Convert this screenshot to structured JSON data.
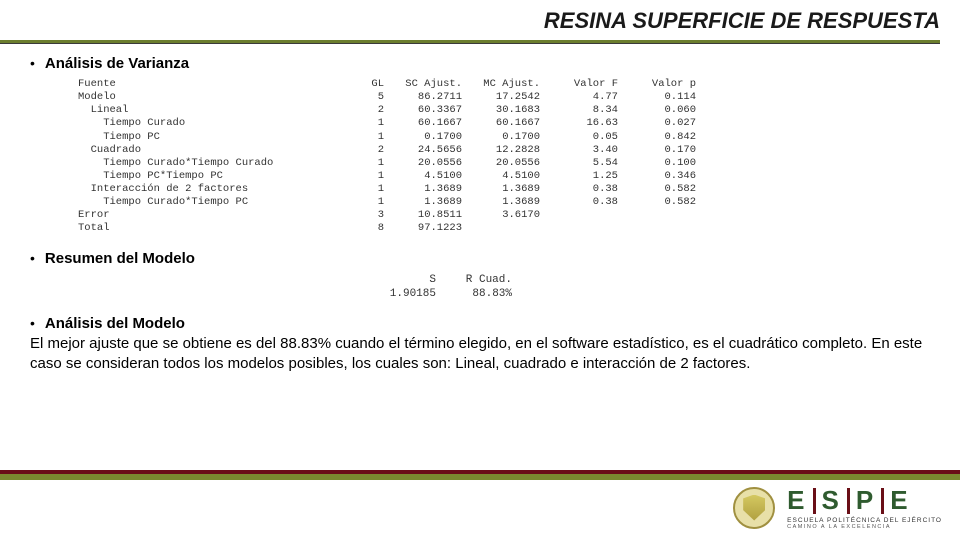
{
  "title": "RESINA SUPERFICIE DE RESPUESTA",
  "sections": {
    "anova_label": "Análisis de Varianza",
    "summary_label": "Resumen del Modelo",
    "analysis_label": "Análisis del Modelo"
  },
  "anova": {
    "headers": [
      "Fuente",
      "GL",
      "SC Ajust.",
      "MC Ajust.",
      "Valor F",
      "Valor p"
    ],
    "rows": [
      {
        "src": "Modelo",
        "indent": 0,
        "gl": "5",
        "sc": "86.2711",
        "mc": "17.2542",
        "f": "4.77",
        "p": "0.114"
      },
      {
        "src": "Lineal",
        "indent": 1,
        "gl": "2",
        "sc": "60.3367",
        "mc": "30.1683",
        "f": "8.34",
        "p": "0.060"
      },
      {
        "src": "Tiempo Curado",
        "indent": 2,
        "gl": "1",
        "sc": "60.1667",
        "mc": "60.1667",
        "f": "16.63",
        "p": "0.027"
      },
      {
        "src": "Tiempo PC",
        "indent": 2,
        "gl": "1",
        "sc": "0.1700",
        "mc": "0.1700",
        "f": "0.05",
        "p": "0.842"
      },
      {
        "src": "Cuadrado",
        "indent": 1,
        "gl": "2",
        "sc": "24.5656",
        "mc": "12.2828",
        "f": "3.40",
        "p": "0.170"
      },
      {
        "src": "Tiempo Curado*Tiempo Curado",
        "indent": 2,
        "gl": "1",
        "sc": "20.0556",
        "mc": "20.0556",
        "f": "5.54",
        "p": "0.100"
      },
      {
        "src": "Tiempo PC*Tiempo PC",
        "indent": 2,
        "gl": "1",
        "sc": "4.5100",
        "mc": "4.5100",
        "f": "1.25",
        "p": "0.346"
      },
      {
        "src": "Interacción de 2 factores",
        "indent": 1,
        "gl": "1",
        "sc": "1.3689",
        "mc": "1.3689",
        "f": "0.38",
        "p": "0.582"
      },
      {
        "src": "Tiempo Curado*Tiempo PC",
        "indent": 2,
        "gl": "1",
        "sc": "1.3689",
        "mc": "1.3689",
        "f": "0.38",
        "p": "0.582"
      },
      {
        "src": "Error",
        "indent": 0,
        "gl": "3",
        "sc": "10.8511",
        "mc": "3.6170",
        "f": "",
        "p": ""
      },
      {
        "src": "Total",
        "indent": 0,
        "gl": "8",
        "sc": "97.1223",
        "mc": "",
        "f": "",
        "p": ""
      }
    ]
  },
  "summary": {
    "headers": [
      "S",
      "R Cuad."
    ],
    "values": [
      "1.90185",
      "88.83%"
    ]
  },
  "paragraph": "El mejor ajuste que se obtiene es del 88.83% cuando el término elegido, en el software estadístico, es el cuadrático completo.  En este caso se consideran todos los modelos posibles, los cuales son: Lineal, cuadrado e interacción de 2 factores.",
  "logo": {
    "letters": [
      "E",
      "S",
      "P",
      "E"
    ],
    "sub1": "ESCUELA POLITÉCNICA DEL EJÉRCITO",
    "sub2": "CAMINO A LA EXCELENCIA"
  },
  "colors": {
    "olive": "#7a8a2f",
    "maroon": "#6a0f17",
    "text": "#000000",
    "mono": "#333333"
  }
}
